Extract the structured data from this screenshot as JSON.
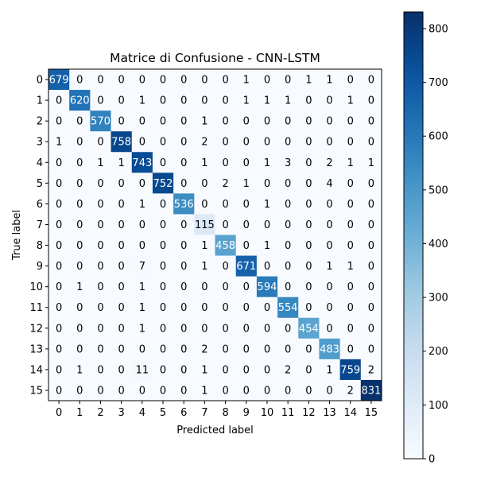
{
  "chart_data": {
    "type": "heatmap",
    "title": "Matrice di Confusione - CNN-LSTM",
    "xlabel": "Predicted label",
    "ylabel": "True label",
    "x_ticks": [
      "0",
      "1",
      "2",
      "3",
      "4",
      "5",
      "6",
      "7",
      "8",
      "9",
      "10",
      "11",
      "12",
      "13",
      "14",
      "15"
    ],
    "y_ticks": [
      "0",
      "1",
      "2",
      "3",
      "4",
      "5",
      "6",
      "7",
      "8",
      "9",
      "10",
      "11",
      "12",
      "13",
      "14",
      "15"
    ],
    "matrix": [
      [
        679,
        0,
        0,
        0,
        0,
        0,
        0,
        0,
        0,
        1,
        0,
        0,
        1,
        1,
        0,
        0
      ],
      [
        0,
        620,
        0,
        0,
        1,
        0,
        0,
        0,
        0,
        1,
        1,
        1,
        0,
        0,
        1,
        0
      ],
      [
        0,
        0,
        570,
        0,
        0,
        0,
        0,
        1,
        0,
        0,
        0,
        0,
        0,
        0,
        0,
        0
      ],
      [
        1,
        0,
        0,
        758,
        0,
        0,
        0,
        2,
        0,
        0,
        0,
        0,
        0,
        0,
        0,
        0
      ],
      [
        0,
        0,
        1,
        1,
        743,
        0,
        0,
        1,
        0,
        0,
        1,
        3,
        0,
        2,
        1,
        1
      ],
      [
        0,
        0,
        0,
        0,
        0,
        752,
        0,
        0,
        2,
        1,
        0,
        0,
        0,
        4,
        0,
        0
      ],
      [
        0,
        0,
        0,
        0,
        1,
        0,
        536,
        0,
        0,
        0,
        1,
        0,
        0,
        0,
        0,
        0
      ],
      [
        0,
        0,
        0,
        0,
        0,
        0,
        0,
        115,
        0,
        0,
        0,
        0,
        0,
        0,
        0,
        0
      ],
      [
        0,
        0,
        0,
        0,
        0,
        0,
        0,
        1,
        458,
        0,
        1,
        0,
        0,
        0,
        0,
        0
      ],
      [
        0,
        0,
        0,
        0,
        7,
        0,
        0,
        1,
        0,
        671,
        0,
        0,
        0,
        1,
        1,
        0
      ],
      [
        0,
        1,
        0,
        0,
        1,
        0,
        0,
        0,
        0,
        0,
        594,
        0,
        0,
        0,
        0,
        0
      ],
      [
        0,
        0,
        0,
        0,
        1,
        0,
        0,
        0,
        0,
        0,
        0,
        554,
        0,
        0,
        0,
        0
      ],
      [
        0,
        0,
        0,
        0,
        1,
        0,
        0,
        0,
        0,
        0,
        0,
        0,
        454,
        0,
        0,
        0
      ],
      [
        0,
        0,
        0,
        0,
        0,
        0,
        0,
        2,
        0,
        0,
        0,
        0,
        0,
        483,
        0,
        0
      ],
      [
        0,
        1,
        0,
        0,
        11,
        0,
        0,
        1,
        0,
        0,
        0,
        2,
        0,
        1,
        759,
        2
      ],
      [
        0,
        0,
        0,
        0,
        0,
        0,
        0,
        1,
        0,
        0,
        0,
        0,
        0,
        0,
        2,
        831
      ]
    ],
    "colormap": "Blues",
    "colorbar": {
      "min": 0,
      "max": 831,
      "ticks": [
        0,
        100,
        200,
        300,
        400,
        500,
        600,
        700,
        800
      ]
    },
    "grid": false,
    "colors": {
      "low": "#f7fbff",
      "high": "#08306b"
    }
  }
}
